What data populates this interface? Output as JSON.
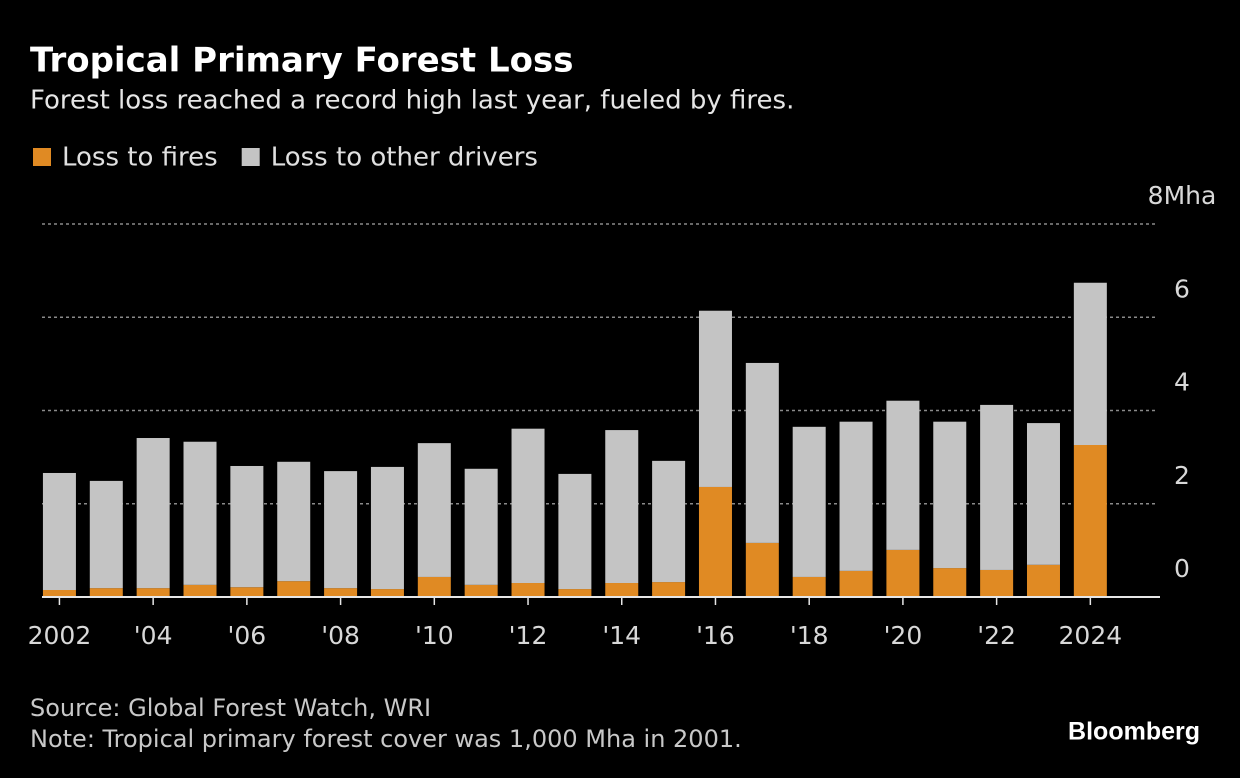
{
  "chart_data": {
    "type": "bar",
    "stacked": true,
    "title": "Tropical Primary Forest Loss",
    "subtitle": "Forest loss reached a record high last year, fueled by fires.",
    "categories": [
      "2002",
      null,
      "'04",
      null,
      "'06",
      null,
      "'08",
      null,
      "'10",
      null,
      "'12",
      null,
      "'14",
      null,
      "'16",
      null,
      "'18",
      null,
      "'20",
      null,
      "'22",
      null,
      "2024"
    ],
    "series": [
      {
        "name": "Loss to fires",
        "color": "#e08a23",
        "values": [
          0.15,
          0.19,
          0.19,
          0.26,
          0.21,
          0.34,
          0.19,
          0.17,
          0.43,
          0.26,
          0.3,
          0.17,
          0.3,
          0.32,
          2.36,
          1.16,
          0.43,
          0.56,
          1.01,
          0.62,
          0.58,
          0.69,
          3.26
        ]
      },
      {
        "name": "Loss to other drivers",
        "color": "#c4c4c4",
        "values": [
          2.51,
          2.3,
          3.22,
          3.07,
          2.6,
          2.56,
          2.51,
          2.62,
          2.87,
          2.49,
          3.31,
          2.47,
          3.28,
          2.6,
          3.78,
          3.86,
          3.22,
          3.2,
          3.2,
          3.14,
          3.54,
          3.04,
          3.48
        ]
      }
    ],
    "ylim": [
      0,
      8
    ],
    "yticks": [
      0,
      2,
      4,
      6,
      {
        "value": 8,
        "label": "8Mha"
      }
    ],
    "grid": true,
    "source": "Source: Global Forest Watch, WRI",
    "note": "Note: Tropical primary forest cover was 1,000 Mha in 2001.",
    "brand": "Bloomberg"
  }
}
